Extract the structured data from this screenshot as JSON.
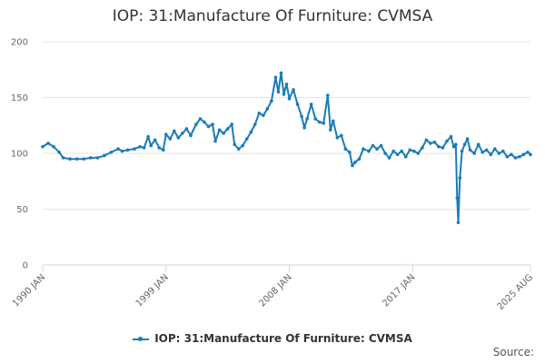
{
  "chart_data": {
    "type": "line",
    "title": "IOP: 31:Manufacture Of Furniture: CVMSA",
    "xlabel": "",
    "ylabel": "",
    "ylim": [
      0,
      200
    ],
    "yticks": [
      0,
      50,
      100,
      150,
      200
    ],
    "x_range": [
      1990.0,
      2025.6
    ],
    "xticks": [
      {
        "label": "1990 JAN",
        "value": 1990.0
      },
      {
        "label": "1999 JAN",
        "value": 1999.0
      },
      {
        "label": "2008 JAN",
        "value": 2008.0
      },
      {
        "label": "2017 JAN",
        "value": 2017.0
      },
      {
        "label": "2025 AUG",
        "value": 2025.6
      }
    ],
    "series": [
      {
        "name": "IOP: 31:Manufacture Of Furniture: CVMSA",
        "color": "#1a7bb9",
        "points": [
          [
            1990.0,
            106
          ],
          [
            1990.4,
            109
          ],
          [
            1990.8,
            106
          ],
          [
            1991.2,
            101
          ],
          [
            1991.5,
            96
          ],
          [
            1992.0,
            95
          ],
          [
            1992.5,
            95
          ],
          [
            1993.0,
            95
          ],
          [
            1993.5,
            96
          ],
          [
            1994.0,
            96
          ],
          [
            1994.5,
            98
          ],
          [
            1995.0,
            101
          ],
          [
            1995.5,
            104
          ],
          [
            1995.8,
            102
          ],
          [
            1996.2,
            103
          ],
          [
            1996.7,
            104
          ],
          [
            1997.1,
            106
          ],
          [
            1997.4,
            105
          ],
          [
            1997.7,
            115
          ],
          [
            1997.9,
            107
          ],
          [
            1998.2,
            112
          ],
          [
            1998.5,
            105
          ],
          [
            1998.8,
            103
          ],
          [
            1999.0,
            117
          ],
          [
            1999.3,
            113
          ],
          [
            1999.6,
            120
          ],
          [
            1999.9,
            114
          ],
          [
            2000.2,
            118
          ],
          [
            2000.5,
            122
          ],
          [
            2000.8,
            116
          ],
          [
            2001.2,
            126
          ],
          [
            2001.5,
            131
          ],
          [
            2001.8,
            128
          ],
          [
            2002.1,
            124
          ],
          [
            2002.4,
            126
          ],
          [
            2002.6,
            111
          ],
          [
            2002.9,
            121
          ],
          [
            2003.2,
            118
          ],
          [
            2003.5,
            122
          ],
          [
            2003.8,
            126
          ],
          [
            2004.0,
            108
          ],
          [
            2004.3,
            104
          ],
          [
            2004.6,
            107
          ],
          [
            2004.9,
            113
          ],
          [
            2005.2,
            119
          ],
          [
            2005.5,
            126
          ],
          [
            2005.8,
            136
          ],
          [
            2006.1,
            134
          ],
          [
            2006.4,
            140
          ],
          [
            2006.7,
            147
          ],
          [
            2007.0,
            168
          ],
          [
            2007.2,
            155
          ],
          [
            2007.4,
            172
          ],
          [
            2007.6,
            153
          ],
          [
            2007.8,
            162
          ],
          [
            2008.0,
            149
          ],
          [
            2008.3,
            157
          ],
          [
            2008.6,
            144
          ],
          [
            2008.9,
            133
          ],
          [
            2009.1,
            123
          ],
          [
            2009.3,
            131
          ],
          [
            2009.6,
            144
          ],
          [
            2009.9,
            131
          ],
          [
            2010.2,
            128
          ],
          [
            2010.5,
            127
          ],
          [
            2010.8,
            152
          ],
          [
            2011.0,
            121
          ],
          [
            2011.2,
            129
          ],
          [
            2011.5,
            114
          ],
          [
            2011.8,
            116
          ],
          [
            2012.1,
            104
          ],
          [
            2012.4,
            101
          ],
          [
            2012.6,
            89
          ],
          [
            2012.8,
            92
          ],
          [
            2013.1,
            95
          ],
          [
            2013.4,
            104
          ],
          [
            2013.8,
            102
          ],
          [
            2014.1,
            107
          ],
          [
            2014.4,
            104
          ],
          [
            2014.7,
            107
          ],
          [
            2015.0,
            100
          ],
          [
            2015.3,
            96
          ],
          [
            2015.6,
            102
          ],
          [
            2015.9,
            99
          ],
          [
            2016.2,
            102
          ],
          [
            2016.5,
            97
          ],
          [
            2016.8,
            103
          ],
          [
            2017.1,
            102
          ],
          [
            2017.4,
            100
          ],
          [
            2017.7,
            105
          ],
          [
            2018.0,
            112
          ],
          [
            2018.3,
            109
          ],
          [
            2018.6,
            110
          ],
          [
            2018.9,
            106
          ],
          [
            2019.2,
            105
          ],
          [
            2019.5,
            111
          ],
          [
            2019.8,
            115
          ],
          [
            2020.0,
            106
          ],
          [
            2020.15,
            108
          ],
          [
            2020.25,
            60
          ],
          [
            2020.33,
            38
          ],
          [
            2020.45,
            78
          ],
          [
            2020.6,
            102
          ],
          [
            2020.8,
            108
          ],
          [
            2021.0,
            113
          ],
          [
            2021.2,
            103
          ],
          [
            2021.5,
            100
          ],
          [
            2021.8,
            108
          ],
          [
            2022.1,
            101
          ],
          [
            2022.4,
            103
          ],
          [
            2022.7,
            99
          ],
          [
            2023.0,
            104
          ],
          [
            2023.3,
            100
          ],
          [
            2023.6,
            102
          ],
          [
            2023.9,
            97
          ],
          [
            2024.2,
            99
          ],
          [
            2024.5,
            96
          ],
          [
            2024.8,
            97
          ],
          [
            2025.1,
            99
          ],
          [
            2025.4,
            101
          ],
          [
            2025.6,
            99
          ]
        ]
      }
    ],
    "legend": "bottom-center",
    "grid": true
  },
  "legend_label": "IOP: 31:Manufacture Of Furniture: CVMSA",
  "source_label": "Source:"
}
